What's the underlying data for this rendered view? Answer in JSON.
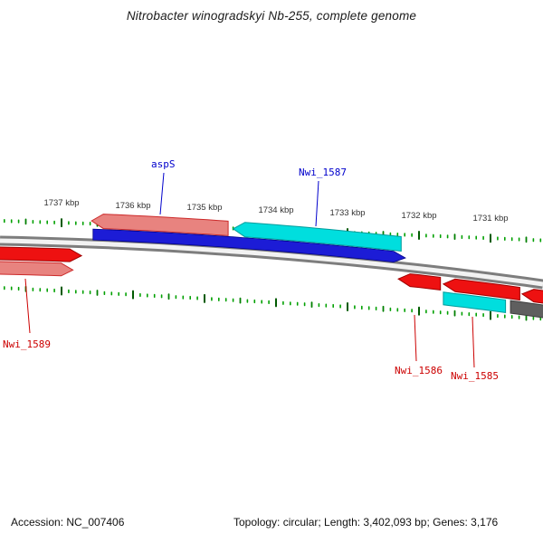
{
  "title": "Nitrobacter winogradskyi Nb-255, complete genome",
  "ruler": {
    "unit": "kbp",
    "tick_labels": [
      "1737 kbp",
      "1736 kbp",
      "1735 kbp",
      "1734 kbp",
      "1733 kbp",
      "1732 kbp",
      "1731 kbp"
    ],
    "tick_kbp": [
      1737,
      1736,
      1735,
      1734,
      1733,
      1732,
      1731
    ]
  },
  "palette": {
    "red": "#ee1111",
    "red_border": "#a00000",
    "salmon": "#e8837f",
    "salmon_border": "#cc2a2a",
    "blue": "#1c1cd6",
    "blue_border": "#000088",
    "cyan": "#00dede",
    "cyan_border": "#009c9c",
    "gray": "#5f5f5f",
    "gray_border": "#3d3d3d",
    "tick_green": "#00a000",
    "tick_green_mid": "#008000",
    "tick_green_dark": "#005a00",
    "track_gray": "#7d7d7d",
    "track_light": "#f2f2f2",
    "label_blue": "#0000cc",
    "label_red": "#cc0000"
  },
  "features": [
    {
      "id": "gene-pink-upper",
      "label": "",
      "fill": "salmon",
      "row": "upper2",
      "dir": "left",
      "start_kbp": 1736.58,
      "end_kbp": 1734.67
    },
    {
      "id": "aspS",
      "label": "aspS",
      "fill": "blue",
      "row": "upper1",
      "dir": "right",
      "start_kbp": 1736.56,
      "end_kbp": 1732.19
    },
    {
      "id": "nwi-1587",
      "label": "Nwi_1587",
      "fill": "cyan",
      "row": "upper2",
      "dir": "left",
      "start_kbp": 1734.6,
      "end_kbp": 1732.25
    },
    {
      "id": "gene-red-left",
      "label": "",
      "fill": "red",
      "row": "lower1",
      "dir": "right",
      "start_kbp": 1738.0,
      "end_kbp": 1736.72
    },
    {
      "id": "nwi-1589",
      "label": "Nwi_1589",
      "fill": "salmon",
      "row": "lower2",
      "dir": "right",
      "start_kbp": 1738.0,
      "end_kbp": 1736.84
    },
    {
      "id": "nwi-1586",
      "label": "Nwi_1586",
      "fill": "red",
      "row": "lower1",
      "dir": "left",
      "start_kbp": 1732.29,
      "end_kbp": 1731.7
    },
    {
      "id": "nwi-1585",
      "label": "Nwi_1585",
      "fill": "red",
      "row": "lower1",
      "dir": "left",
      "start_kbp": 1731.66,
      "end_kbp": 1730.59
    },
    {
      "id": "gene-cyan-lower",
      "label": "",
      "fill": "cyan",
      "row": "lower2",
      "dir": "none",
      "start_kbp": 1731.66,
      "end_kbp": 1730.79
    },
    {
      "id": "gene-red-right",
      "label": "",
      "fill": "red",
      "row": "lower1",
      "dir": "left",
      "start_kbp": 1730.56,
      "end_kbp": 1730.1
    },
    {
      "id": "gene-gray-right",
      "label": "",
      "fill": "gray",
      "row": "lower2",
      "dir": "none",
      "start_kbp": 1730.72,
      "end_kbp": 1730.1
    }
  ],
  "callouts": {
    "aspS": "aspS",
    "nwi_1587": "Nwi_1587",
    "nwi_1589": "Nwi_1589",
    "nwi_1586": "Nwi_1586",
    "nwi_1585": "Nwi_1585"
  },
  "footer": {
    "accession": "Accession: NC_007406",
    "summary": "Topology: circular; Length: 3,402,093 bp; Genes: 3,176"
  }
}
